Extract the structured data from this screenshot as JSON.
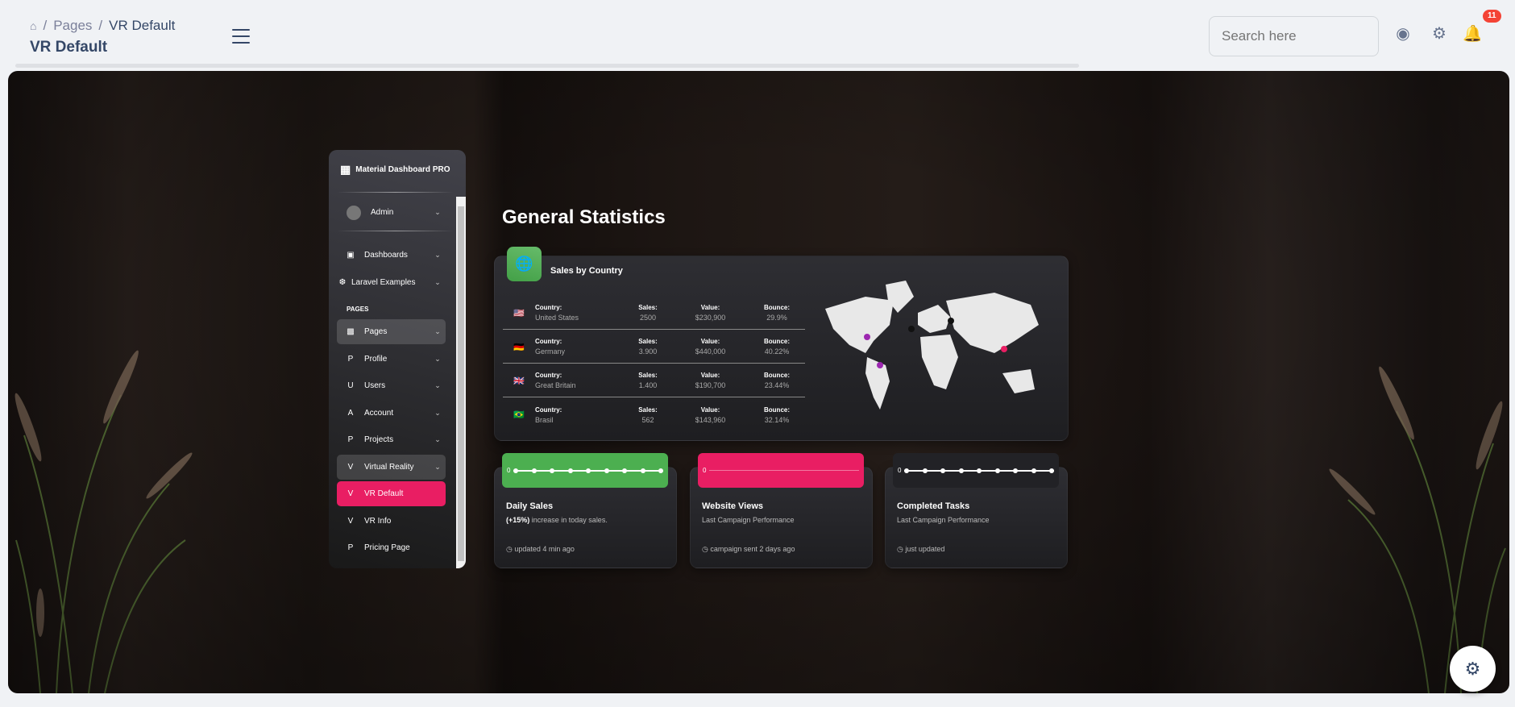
{
  "header": {
    "breadcrumb": [
      "Pages",
      "VR Default"
    ],
    "title": "VR Default",
    "search_placeholder": "Search here",
    "notifications": "11"
  },
  "sidebar": {
    "brand": "Material Dashboard PRO",
    "user": "Admin",
    "section": "PAGES",
    "items": [
      {
        "icon": "D",
        "label": "Dashboards"
      },
      {
        "icon": "L",
        "label": "Laravel Examples"
      },
      {
        "icon": "img",
        "label": "Pages"
      },
      {
        "icon": "P",
        "label": "Profile"
      },
      {
        "icon": "U",
        "label": "Users"
      },
      {
        "icon": "A",
        "label": "Account"
      },
      {
        "icon": "P",
        "label": "Projects"
      },
      {
        "icon": "V",
        "label": "Virtual Reality"
      },
      {
        "icon": "V",
        "label": "VR Default"
      },
      {
        "icon": "V",
        "label": "VR Info"
      },
      {
        "icon": "P",
        "label": "Pricing Page"
      }
    ]
  },
  "main": {
    "title": "General Statistics",
    "sales": {
      "title": "Sales by Country",
      "labels": {
        "country": "Country:",
        "sales": "Sales:",
        "value": "Value:",
        "bounce": "Bounce:"
      },
      "rows": [
        {
          "flag": "us",
          "country": "United States",
          "sales": "2500",
          "value": "$230,900",
          "bounce": "29.9%"
        },
        {
          "flag": "de",
          "country": "Germany",
          "sales": "3.900",
          "value": "$440,000",
          "bounce": "40.22%"
        },
        {
          "flag": "gb",
          "country": "Great Britain",
          "sales": "1.400",
          "value": "$190,700",
          "bounce": "23.44%"
        },
        {
          "flag": "br",
          "country": "Brasil",
          "sales": "562",
          "value": "$143,960",
          "bounce": "32.14%"
        }
      ]
    },
    "cards": [
      {
        "title": "Daily Sales",
        "sub_bold": "(+15%)",
        "sub": " increase in today sales.",
        "footer": "updated 4 min ago",
        "axis": "0",
        "color": "#4caf50"
      },
      {
        "title": "Website Views",
        "sub": "Last Campaign Performance",
        "footer": "campaign sent 2 days ago",
        "axis": "0",
        "color": "#e91e63"
      },
      {
        "title": "Completed Tasks",
        "sub": "Last Campaign Performance",
        "footer": "just updated",
        "axis": "0",
        "color": "#222226"
      }
    ]
  }
}
